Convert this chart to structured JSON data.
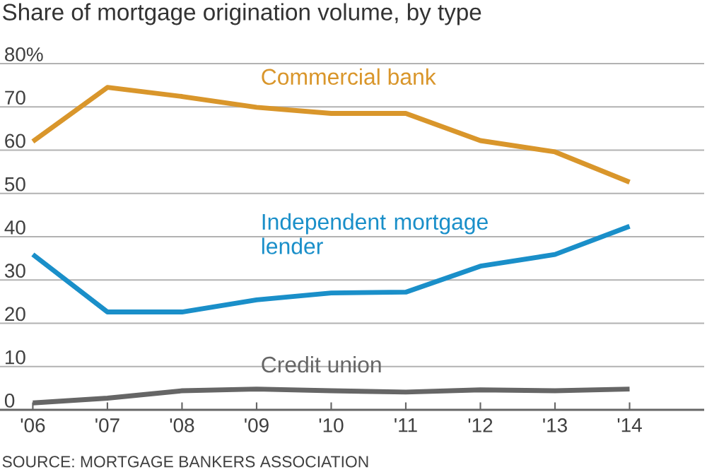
{
  "chart_data": {
    "type": "line",
    "title": "Share of mortgage origination volume, by type",
    "categories": [
      "'06",
      "'07",
      "'08",
      "'09",
      "'10",
      "'11",
      "'12",
      "'13",
      "'14"
    ],
    "series": [
      {
        "name": "Commercial bank",
        "color": "#d9962b",
        "values": [
          62,
          74.5,
          72.4,
          69.9,
          68.5,
          68.5,
          62.2,
          59.6,
          52.6
        ]
      },
      {
        "name": "Independent mortgage lender",
        "color": "#1a8fc9",
        "values": [
          35.9,
          22.6,
          22.6,
          25.4,
          27,
          27.2,
          33.2,
          35.9,
          42.4
        ]
      },
      {
        "name": "Credit union",
        "color": "#666666",
        "values": [
          1.6,
          2.7,
          4.4,
          4.8,
          4.4,
          4.1,
          4.6,
          4.4,
          4.8
        ]
      }
    ],
    "ylim": [
      0,
      80
    ],
    "yticks": [
      0,
      10,
      20,
      30,
      40,
      50,
      60,
      70,
      {
        "value": 80,
        "label": "80%"
      }
    ],
    "grid": "y",
    "annotations": [
      "SOURCE: MORTGAGE BANKERS ASSOCIATION"
    ]
  }
}
